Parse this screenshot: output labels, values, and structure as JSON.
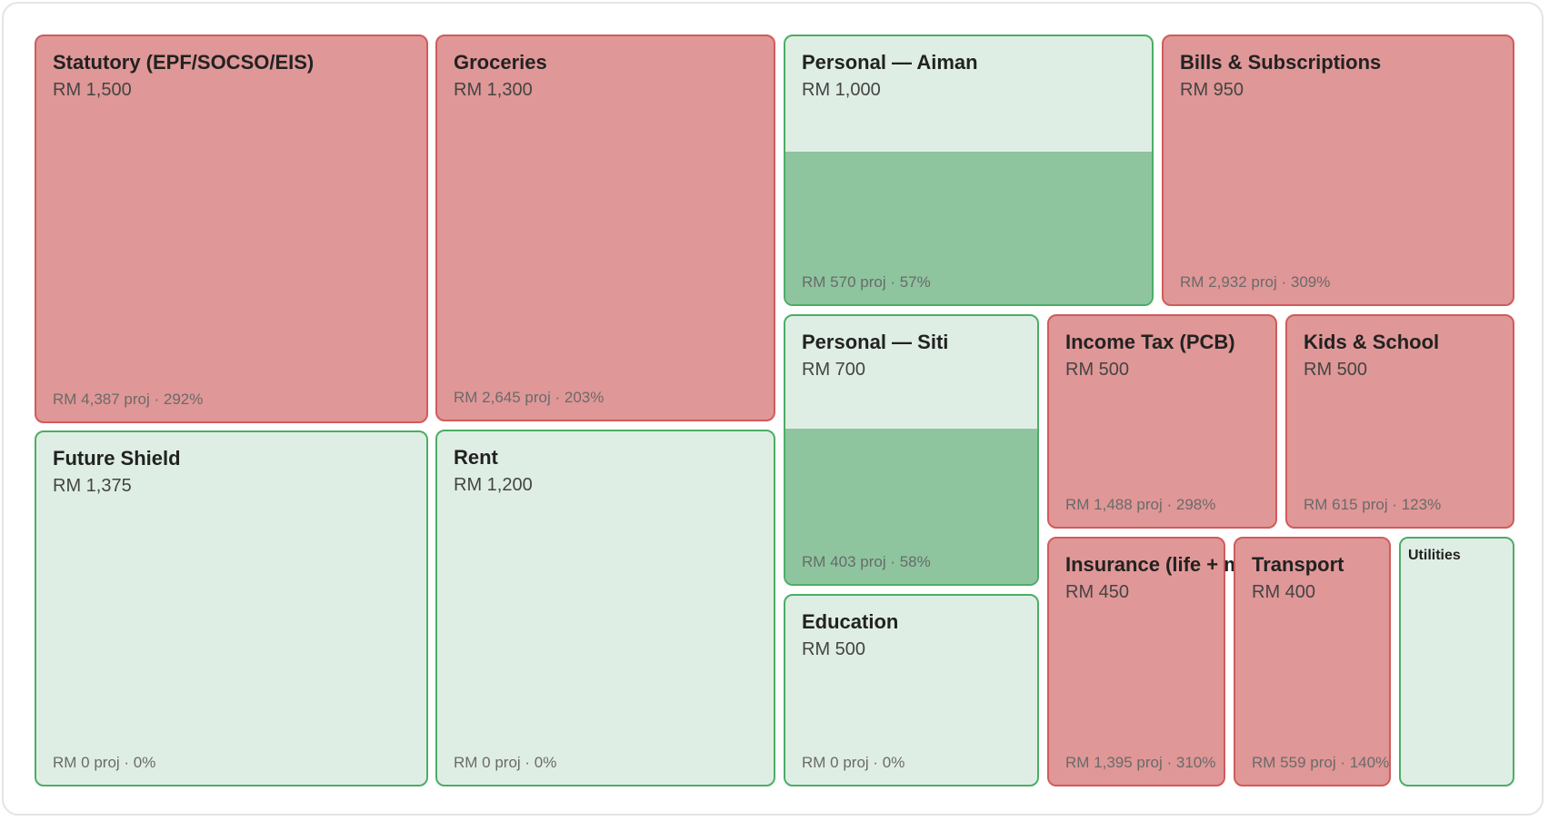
{
  "colors": {
    "over_budget_fill": "#e09797",
    "over_budget_border": "#d15b5b",
    "within_budget_bg": "#dfeee4",
    "within_budget_border": "#4cad66",
    "spent_fill": "#8ec59f"
  },
  "chart_data": {
    "type": "treemap",
    "title": "",
    "items": [
      {
        "label": "Statutory (EPF/SOCSO/EIS)",
        "budget": "RM 1,500",
        "budget_value": 1500,
        "projection": "RM 4,387 proj · 292%",
        "projected_value": 4387,
        "percent": 292,
        "status": "over"
      },
      {
        "label": "Groceries",
        "budget": "RM 1,300",
        "budget_value": 1300,
        "projection": "RM 2,645 proj · 203%",
        "projected_value": 2645,
        "percent": 203,
        "status": "over"
      },
      {
        "label": "Future Shield",
        "budget": "RM 1,375",
        "budget_value": 1375,
        "projection": "RM 0 proj · 0%",
        "projected_value": 0,
        "percent": 0,
        "status": "under"
      },
      {
        "label": "Rent",
        "budget": "RM 1,200",
        "budget_value": 1200,
        "projection": "RM 0 proj · 0%",
        "projected_value": 0,
        "percent": 0,
        "status": "under"
      },
      {
        "label": "Personal — Aiman",
        "budget": "RM 1,000",
        "budget_value": 1000,
        "projection": "RM 570 proj · 57%",
        "projected_value": 570,
        "percent": 57,
        "status": "under"
      },
      {
        "label": "Bills & Subscriptions",
        "budget": "RM 950",
        "budget_value": 950,
        "projection": "RM 2,932 proj · 309%",
        "projected_value": 2932,
        "percent": 309,
        "status": "over"
      },
      {
        "label": "Personal — Siti",
        "budget": "RM 700",
        "budget_value": 700,
        "projection": "RM 403 proj · 58%",
        "projected_value": 403,
        "percent": 58,
        "status": "under"
      },
      {
        "label": "Education",
        "budget": "RM 500",
        "budget_value": 500,
        "projection": "RM 0 proj · 0%",
        "projected_value": 0,
        "percent": 0,
        "status": "under"
      },
      {
        "label": "Income Tax (PCB)",
        "budget": "RM 500",
        "budget_value": 500,
        "projection": "RM 1,488 proj · 298%",
        "projected_value": 1488,
        "percent": 298,
        "status": "over"
      },
      {
        "label": "Kids & School",
        "budget": "RM 500",
        "budget_value": 500,
        "projection": "RM 615 proj · 123%",
        "projected_value": 615,
        "percent": 123,
        "status": "over"
      },
      {
        "label": "Insurance (life + medical)",
        "budget": "RM 450",
        "budget_value": 450,
        "projection": "RM 1,395 proj · 310%",
        "projected_value": 1395,
        "percent": 310,
        "status": "over"
      },
      {
        "label": "Transport",
        "budget": "RM 400",
        "budget_value": 400,
        "projection": "RM 559 proj · 140%",
        "projected_value": 559,
        "percent": 140,
        "status": "over"
      },
      {
        "label": "Utilities",
        "budget": "",
        "projection": "",
        "status": "under"
      }
    ]
  }
}
